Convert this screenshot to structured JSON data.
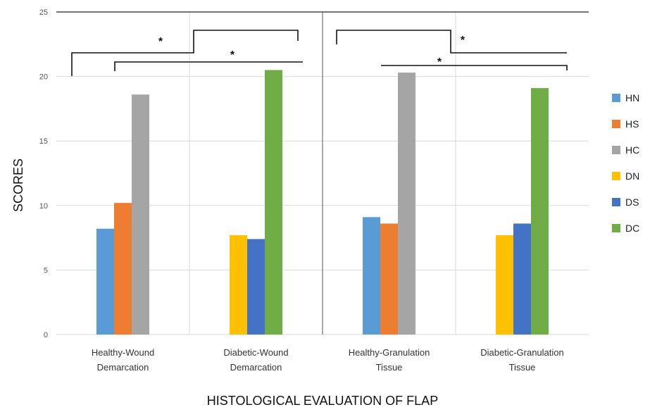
{
  "chart_data": {
    "type": "bar",
    "title": "",
    "xlabel": "HISTOLOGICAL EVALUATION OF FLAP",
    "ylabel": "SCORES",
    "ylim": [
      0,
      25
    ],
    "yticks": [
      0,
      5,
      10,
      15,
      20,
      25
    ],
    "grid": true,
    "legend_position": "right",
    "categories": [
      [
        "Healthy-Wound",
        "Demarcation"
      ],
      [
        "Diabetic-Wound",
        "Demarcation"
      ],
      [
        "Healthy-Granulation",
        "Tissue"
      ],
      [
        "Diabetic-Granulation",
        "Tissue"
      ]
    ],
    "series": [
      {
        "name": "HN",
        "color": "#5B9BD5",
        "values": [
          8.2,
          null,
          9.1,
          null
        ]
      },
      {
        "name": "HS",
        "color": "#ED7D31",
        "values": [
          10.2,
          null,
          8.6,
          null
        ]
      },
      {
        "name": "HC",
        "color": "#A5A5A5",
        "values": [
          18.6,
          null,
          20.3,
          null
        ]
      },
      {
        "name": "DN",
        "color": "#FFC000",
        "values": [
          null,
          7.7,
          null,
          7.7
        ]
      },
      {
        "name": "DS",
        "color": "#4472C4",
        "values": [
          null,
          7.4,
          null,
          8.6
        ]
      },
      {
        "name": "DC",
        "color": "#70AD47",
        "values": [
          null,
          20.5,
          null,
          19.1
        ]
      }
    ],
    "annotations": {
      "significance_mark": "*"
    }
  }
}
